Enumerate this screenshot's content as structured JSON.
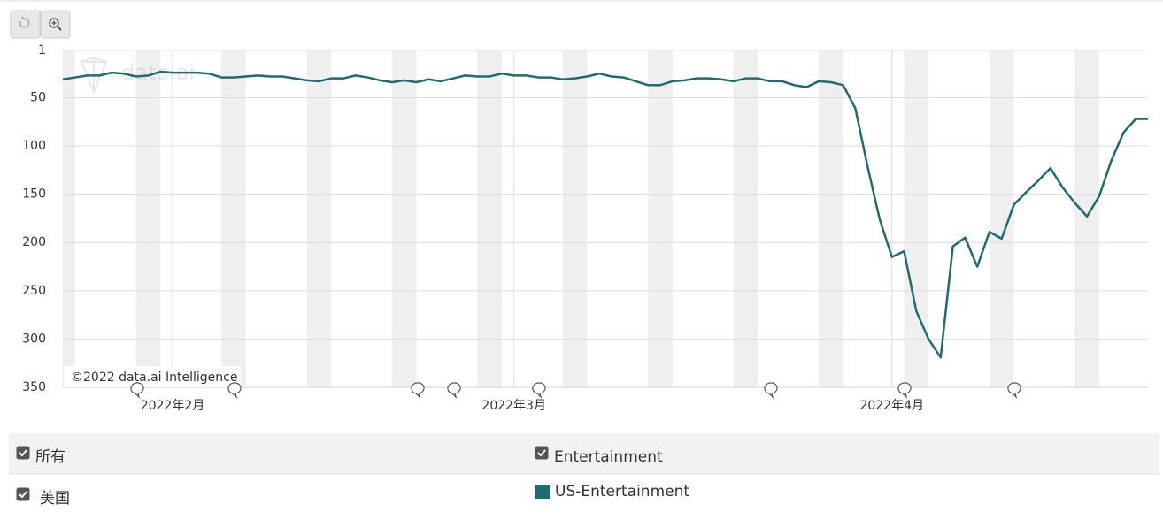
{
  "chart_data": {
    "type": "line",
    "watermark": "data.ai",
    "copyright": "©2022 data.ai Intelligence",
    "categories": [
      null,
      null,
      null,
      null,
      null,
      null,
      null,
      null,
      null,
      "2022年2月",
      null,
      null,
      null,
      null,
      null,
      null,
      null,
      null,
      null,
      null,
      null,
      null,
      null,
      null,
      null,
      null,
      null,
      null,
      null,
      null,
      null,
      null,
      null,
      null,
      null,
      null,
      null,
      "2022年3月",
      null,
      null,
      null,
      null,
      null,
      null,
      null,
      null,
      null,
      null,
      null,
      null,
      null,
      null,
      null,
      null,
      null,
      null,
      null,
      null,
      null,
      null,
      null,
      null,
      null,
      null,
      null,
      null,
      null,
      null,
      "2022年4月",
      null,
      null,
      null,
      null,
      null,
      null,
      null,
      null,
      null,
      null,
      null,
      null,
      null,
      null,
      null,
      null,
      null,
      null,
      null,
      null,
      null
    ],
    "series": [
      {
        "name": "US-Entertainment",
        "color": "#1f6b72",
        "values": [
          31,
          29,
          27,
          27,
          24,
          25,
          28,
          27,
          23,
          24,
          24,
          24,
          25,
          29,
          29,
          28,
          27,
          28,
          28,
          30,
          32,
          33,
          30,
          30,
          27,
          29,
          32,
          34,
          32,
          34,
          31,
          33,
          30,
          27,
          28,
          28,
          25,
          27,
          27,
          29,
          29,
          31,
          30,
          28,
          25,
          28,
          29,
          33,
          37,
          37,
          33,
          32,
          30,
          30,
          31,
          33,
          30,
          30,
          33,
          33,
          37,
          39,
          33,
          34,
          37,
          61,
          121,
          176,
          215,
          209,
          271,
          300,
          319,
          204,
          195,
          225,
          189,
          196,
          161,
          148,
          136,
          123,
          143,
          159,
          173,
          152,
          115,
          86,
          72,
          72
        ]
      }
    ],
    "ylim": [
      1,
      350
    ],
    "inverted": true,
    "yticks": [
      1,
      50,
      100,
      150,
      200,
      250,
      300,
      350
    ],
    "grid": true,
    "filters": [
      {
        "label": "所有",
        "checked": true
      },
      {
        "label": "Entertainment",
        "checked": true
      },
      {
        "label": "美国",
        "checked": true
      }
    ]
  }
}
